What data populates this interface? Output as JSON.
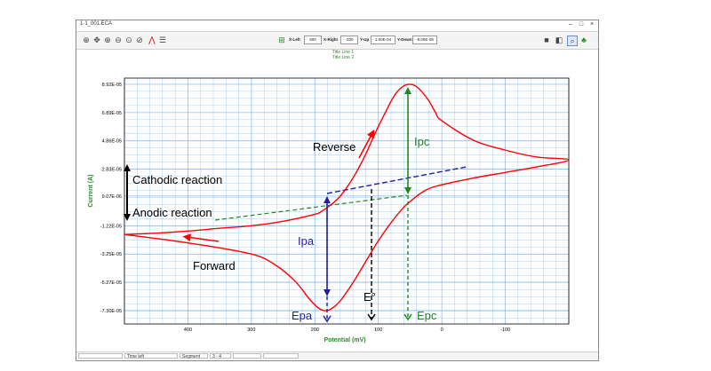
{
  "window": {
    "title": "1-1_001.ECA"
  },
  "toolbar": {
    "fields": [
      {
        "label": "X-Left",
        "value": "500"
      },
      {
        "label": "X-Right",
        "value": "-200"
      },
      {
        "label": "Y-Up",
        "value": "1.00E-04"
      },
      {
        "label": "Y-Down",
        "value": "-8.00E-05"
      }
    ]
  },
  "status": {
    "time_left_label": "Time left",
    "segment_label": "Segment",
    "segment_value": "3 - 4"
  },
  "chart_data": {
    "type": "line",
    "title": "Title Line 1",
    "subtitle": "Title Line 2",
    "xlabel": "Potential (mV)",
    "ylabel": "Current (A)",
    "x_inverted": true,
    "xlim": [
      500,
      -200
    ],
    "ylim": [
      -8.26e-05,
      9.36e-05
    ],
    "grid": true,
    "x_ticks": [
      {
        "value": 400,
        "label": "400"
      },
      {
        "value": 300,
        "label": "300"
      },
      {
        "value": 200,
        "label": "200"
      },
      {
        "value": 100,
        "label": "100"
      },
      {
        "value": 0,
        "label": "0"
      },
      {
        "value": -100,
        "label": "-100"
      }
    ],
    "y_ticks": [
      {
        "value": 8.92e-05,
        "label": "8.92E-05"
      },
      {
        "value": 6.89e-05,
        "label": "6.89E-05"
      },
      {
        "value": 4.86e-05,
        "label": "4.86E-05"
      },
      {
        "value": 2.83e-05,
        "label": "2.83E-05"
      },
      {
        "value": 9.07e-06,
        "label": "9.07E-06"
      },
      {
        "value": -1.22e-05,
        "label": "-1.22E-05"
      },
      {
        "value": -3.25e-05,
        "label": "-3.25E-05"
      },
      {
        "value": -5.27e-05,
        "label": "-5.27E-05"
      },
      {
        "value": -7.3e-05,
        "label": "-7.30E-05"
      }
    ],
    "series": [
      {
        "color": "#ff0000",
        "x": [
          500,
          400,
          300,
          260,
          230,
          210,
          195,
          185,
          175,
          160,
          140,
          120,
          100,
          80,
          60,
          45,
          30,
          10,
          -50,
          -100,
          -150,
          -200,
          -150,
          -100,
          -50,
          0,
          10,
          20,
          30,
          40,
          50,
          60,
          70,
          80,
          90,
          100,
          110,
          120,
          130,
          140,
          150,
          160,
          170,
          180,
          190,
          200,
          250,
          300,
          350,
          400,
          450,
          500
        ],
        "y": [
          -1.85e-05,
          -2.45e-05,
          -3.25e-05,
          -4.1e-05,
          -5.25e-05,
          -6.4e-05,
          -7.1e-05,
          -7.3e-05,
          -7.2e-05,
          -6.6e-05,
          -5.3e-05,
          -3.8e-05,
          -2.3e-05,
          -1e-05,
          1e-06,
          7e-06,
          1.2e-05,
          1.6e-05,
          2.2e-05,
          2.6e-05,
          3e-05,
          3.5e-05,
          3.7e-05,
          4.2e-05,
          4.9e-05,
          6.3e-05,
          6.9e-05,
          7.7e-05,
          8.3e-05,
          8.75e-05,
          8.92e-05,
          8.8e-05,
          8.4e-05,
          7.7e-05,
          6.8e-05,
          5.9e-05,
          4.9e-05,
          3.9e-05,
          3e-05,
          2.2e-05,
          1.5e-05,
          9e-06,
          4.5e-06,
          1e-06,
          -2e-06,
          -4e-06,
          -9e-06,
          -1.22e-05,
          -1.4e-05,
          -1.6e-05,
          -1.75e-05,
          -1.85e-05
        ]
      }
    ],
    "annotations": {
      "reverse": "Reverse",
      "forward": "Forward",
      "cathodic": "Cathodic reaction",
      "anodic": "Anodic reaction",
      "ipc": "Ipc",
      "ipa": "Ipa",
      "epa": "Epa",
      "epc": "Epc",
      "e0": "E°"
    }
  }
}
